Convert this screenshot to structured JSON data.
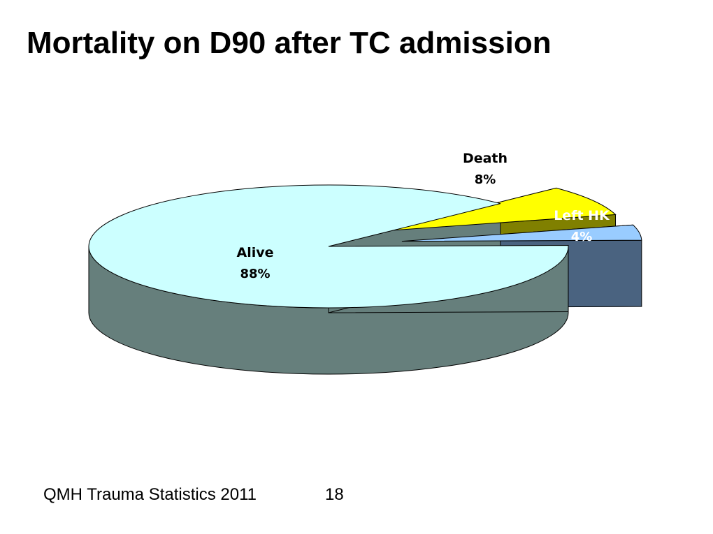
{
  "slide": {
    "title": "Mortality on D90 after TC admission",
    "footer_source": "QMH Trauma Statistics 2011",
    "page_number": "18"
  },
  "chart_data": {
    "type": "pie",
    "title": "Mortality on D90 after TC admission",
    "three_d": true,
    "categories": [
      "Alive",
      "Death",
      "Left HK"
    ],
    "values": [
      88,
      8,
      4
    ],
    "value_labels": [
      "88%",
      "8%",
      "4%"
    ],
    "unit": "%",
    "exploded": [
      "Death",
      "Left HK"
    ],
    "colors": {
      "Alive": "#ccffff",
      "Death": "#ffff00",
      "Left HK": "#99ccff"
    },
    "side_colors": {
      "Alive": "#667f7c",
      "Death": "#808000",
      "Left HK": "#4a6380"
    },
    "label_colors": {
      "Alive": "#000000",
      "Death": "#000000",
      "Left HK": "#ffffff"
    },
    "legend": "none"
  }
}
